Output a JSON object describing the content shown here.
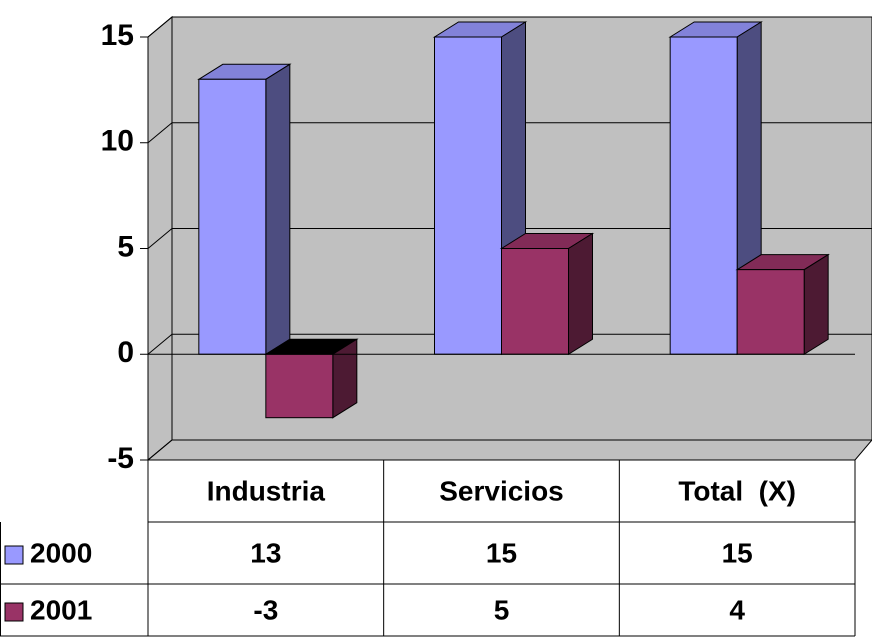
{
  "chart_data": {
    "type": "bar3d",
    "categories": [
      "Industria",
      "Servicios",
      "Total  (X)"
    ],
    "series": [
      {
        "name": "2000",
        "color": "#9999ff",
        "values": [
          13,
          15,
          15
        ]
      },
      {
        "name": "2001",
        "color": "#993366",
        "values": [
          -3,
          5,
          4
        ]
      }
    ],
    "ylim": [
      -5,
      15
    ],
    "yticks": [
      -5,
      0,
      5,
      10,
      15
    ],
    "grid": true,
    "data_table": true
  }
}
